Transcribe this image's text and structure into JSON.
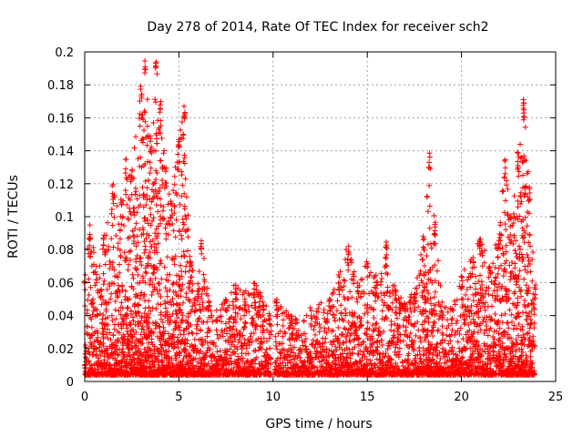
{
  "chart_data": {
    "type": "scatter",
    "title": "Day 278 of 2014, Rate Of TEC Index for receiver sch2",
    "xlabel": "GPS time / hours",
    "ylabel": "ROTI / TECUs",
    "xlim": [
      0,
      25
    ],
    "ylim": [
      0,
      0.2
    ],
    "x_ticks": [
      0,
      5,
      10,
      15,
      20,
      25
    ],
    "x_tick_labels": [
      "0",
      "5",
      "10",
      "15",
      "20",
      "25"
    ],
    "y_ticks": [
      0,
      0.02,
      0.04,
      0.06,
      0.08,
      0.1,
      0.12,
      0.14,
      0.16,
      0.18,
      0.2
    ],
    "y_tick_labels": [
      "0",
      "0.02",
      "0.04",
      "0.06",
      "0.08",
      "0.1",
      "0.12",
      "0.14",
      "0.16",
      "0.18",
      "0.2"
    ],
    "grid": true,
    "marker": "+",
    "color": "#ff0000",
    "data_gap": [
      9.9,
      10.1
    ],
    "envelope": [
      {
        "x": 0.0,
        "y": 0.065
      },
      {
        "x": 0.3,
        "y": 0.095
      },
      {
        "x": 0.6,
        "y": 0.07
      },
      {
        "x": 1.0,
        "y": 0.09
      },
      {
        "x": 1.5,
        "y": 0.12
      },
      {
        "x": 2.0,
        "y": 0.11
      },
      {
        "x": 2.2,
        "y": 0.135
      },
      {
        "x": 2.5,
        "y": 0.13
      },
      {
        "x": 3.0,
        "y": 0.18
      },
      {
        "x": 3.2,
        "y": 0.196
      },
      {
        "x": 3.5,
        "y": 0.15
      },
      {
        "x": 3.8,
        "y": 0.197
      },
      {
        "x": 4.0,
        "y": 0.17
      },
      {
        "x": 4.3,
        "y": 0.13
      },
      {
        "x": 4.6,
        "y": 0.11
      },
      {
        "x": 5.0,
        "y": 0.15
      },
      {
        "x": 5.3,
        "y": 0.17
      },
      {
        "x": 5.6,
        "y": 0.08
      },
      {
        "x": 6.0,
        "y": 0.06
      },
      {
        "x": 6.2,
        "y": 0.088
      },
      {
        "x": 6.6,
        "y": 0.05
      },
      {
        "x": 7.0,
        "y": 0.045
      },
      {
        "x": 7.5,
        "y": 0.05
      },
      {
        "x": 8.0,
        "y": 0.06
      },
      {
        "x": 8.5,
        "y": 0.055
      },
      {
        "x": 9.0,
        "y": 0.062
      },
      {
        "x": 9.5,
        "y": 0.05
      },
      {
        "x": 9.8,
        "y": 0.045
      },
      {
        "x": 10.2,
        "y": 0.05
      },
      {
        "x": 11.0,
        "y": 0.04
      },
      {
        "x": 12.0,
        "y": 0.045
      },
      {
        "x": 13.0,
        "y": 0.05
      },
      {
        "x": 13.5,
        "y": 0.065
      },
      {
        "x": 14.0,
        "y": 0.085
      },
      {
        "x": 14.5,
        "y": 0.06
      },
      {
        "x": 15.0,
        "y": 0.075
      },
      {
        "x": 15.5,
        "y": 0.065
      },
      {
        "x": 16.0,
        "y": 0.085
      },
      {
        "x": 16.5,
        "y": 0.06
      },
      {
        "x": 17.0,
        "y": 0.05
      },
      {
        "x": 17.5,
        "y": 0.055
      },
      {
        "x": 18.0,
        "y": 0.09
      },
      {
        "x": 18.3,
        "y": 0.141
      },
      {
        "x": 18.6,
        "y": 0.1
      },
      {
        "x": 19.0,
        "y": 0.05
      },
      {
        "x": 19.5,
        "y": 0.045
      },
      {
        "x": 20.0,
        "y": 0.065
      },
      {
        "x": 20.5,
        "y": 0.075
      },
      {
        "x": 21.0,
        "y": 0.09
      },
      {
        "x": 21.5,
        "y": 0.07
      },
      {
        "x": 22.0,
        "y": 0.09
      },
      {
        "x": 22.3,
        "y": 0.135
      },
      {
        "x": 22.6,
        "y": 0.1
      },
      {
        "x": 23.0,
        "y": 0.14
      },
      {
        "x": 23.3,
        "y": 0.172
      },
      {
        "x": 23.6,
        "y": 0.12
      },
      {
        "x": 23.9,
        "y": 0.06
      }
    ]
  }
}
